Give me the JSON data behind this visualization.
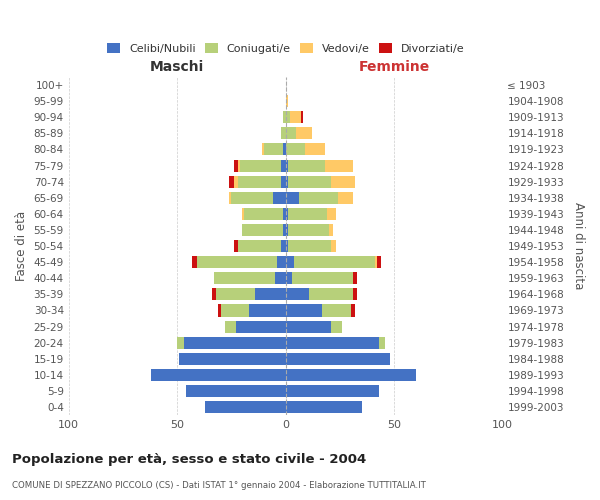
{
  "age_groups": [
    "0-4",
    "5-9",
    "10-14",
    "15-19",
    "20-24",
    "25-29",
    "30-34",
    "35-39",
    "40-44",
    "45-49",
    "50-54",
    "55-59",
    "60-64",
    "65-69",
    "70-74",
    "75-79",
    "80-84",
    "85-89",
    "90-94",
    "95-99",
    "100+"
  ],
  "birth_years": [
    "1999-2003",
    "1994-1998",
    "1989-1993",
    "1984-1988",
    "1979-1983",
    "1974-1978",
    "1969-1973",
    "1964-1968",
    "1959-1963",
    "1954-1958",
    "1949-1953",
    "1944-1948",
    "1939-1943",
    "1934-1938",
    "1929-1933",
    "1924-1928",
    "1919-1923",
    "1914-1918",
    "1909-1913",
    "1904-1908",
    "≤ 1903"
  ],
  "maschi": {
    "celibi": [
      37,
      46,
      62,
      49,
      47,
      23,
      17,
      14,
      5,
      4,
      2,
      1,
      1,
      6,
      2,
      2,
      1,
      0,
      0,
      0,
      0
    ],
    "coniugati": [
      0,
      0,
      0,
      0,
      3,
      5,
      13,
      18,
      28,
      37,
      20,
      19,
      18,
      19,
      20,
      19,
      9,
      2,
      1,
      0,
      0
    ],
    "vedovi": [
      0,
      0,
      0,
      0,
      0,
      0,
      0,
      0,
      0,
      0,
      0,
      0,
      1,
      1,
      2,
      1,
      1,
      0,
      0,
      0,
      0
    ],
    "divorziati": [
      0,
      0,
      0,
      0,
      0,
      0,
      1,
      2,
      0,
      2,
      2,
      0,
      0,
      0,
      2,
      2,
      0,
      0,
      0,
      0,
      0
    ]
  },
  "femmine": {
    "nubili": [
      35,
      43,
      60,
      48,
      43,
      21,
      17,
      11,
      3,
      4,
      1,
      1,
      1,
      6,
      1,
      1,
      0,
      0,
      0,
      0,
      0
    ],
    "coniugate": [
      0,
      0,
      0,
      0,
      3,
      5,
      13,
      20,
      28,
      37,
      20,
      19,
      18,
      18,
      20,
      17,
      9,
      5,
      2,
      0,
      0
    ],
    "vedove": [
      0,
      0,
      0,
      0,
      0,
      0,
      0,
      0,
      0,
      1,
      2,
      2,
      4,
      7,
      11,
      13,
      9,
      7,
      5,
      1,
      0
    ],
    "divorziate": [
      0,
      0,
      0,
      0,
      0,
      0,
      2,
      2,
      2,
      2,
      0,
      0,
      0,
      0,
      0,
      0,
      0,
      0,
      1,
      0,
      0
    ]
  },
  "colors": {
    "celibi": "#4472c4",
    "coniugati": "#b7d07a",
    "vedovi": "#ffc966",
    "divorziati": "#cc1111"
  },
  "xlim": 100,
  "title": "Popolazione per età, sesso e stato civile - 2004",
  "subtitle": "COMUNE DI SPEZZANO PICCOLO (CS) - Dati ISTAT 1° gennaio 2004 - Elaborazione TUTTITALIA.IT",
  "ylabel_left": "Fasce di età",
  "ylabel_right": "Anni di nascita",
  "xlabel_left": "Maschi",
  "xlabel_right": "Femmine",
  "bg_color": "#ffffff",
  "grid_color": "#cccccc",
  "bar_height": 0.75
}
